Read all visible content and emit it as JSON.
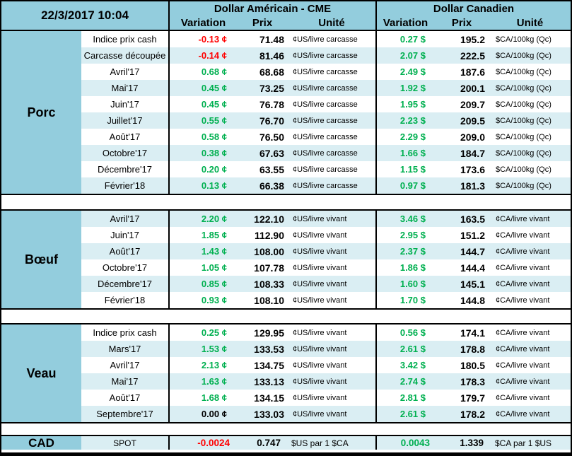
{
  "colors": {
    "header_blue": "#93CDDD",
    "stripe_blue": "#DAEEF3",
    "positive_green": "#00B050",
    "negative_red": "#FF0000",
    "border_black": "#000000"
  },
  "header": {
    "date": "22/3/2017 10:04",
    "us_title": "Dollar Américain - CME",
    "ca_title": "Dollar Canadien",
    "columns": {
      "variation": "Variation",
      "prix": "Prix",
      "unite": "Unité"
    }
  },
  "sections": [
    {
      "name": "Porc",
      "stripe_offset": 1,
      "rows": [
        {
          "label": "Indice prix cash",
          "us": {
            "var": "-0.13 ¢",
            "var_color": "red",
            "prix": "71.48",
            "unit": "¢US/livre carcasse"
          },
          "ca": {
            "var": "0.27 $",
            "var_color": "green",
            "prix": "195.2",
            "unit": "$CA/100kg (Qc)"
          }
        },
        {
          "label": "Carcasse découpée",
          "us": {
            "var": "-0.14 ¢",
            "var_color": "red",
            "prix": "81.46",
            "unit": "¢US/livre carcasse"
          },
          "ca": {
            "var": "2.07 $",
            "var_color": "green",
            "prix": "222.5",
            "unit": "$CA/100kg (Qc)"
          }
        },
        {
          "label": "Avril'17",
          "us": {
            "var": "0.68 ¢",
            "var_color": "green",
            "prix": "68.68",
            "unit": "¢US/livre carcasse"
          },
          "ca": {
            "var": "2.49 $",
            "var_color": "green",
            "prix": "187.6",
            "unit": "$CA/100kg (Qc)"
          }
        },
        {
          "label": "Mai'17",
          "us": {
            "var": "0.45 ¢",
            "var_color": "green",
            "prix": "73.25",
            "unit": "¢US/livre carcasse"
          },
          "ca": {
            "var": "1.92 $",
            "var_color": "green",
            "prix": "200.1",
            "unit": "$CA/100kg (Qc)"
          }
        },
        {
          "label": "Juin'17",
          "us": {
            "var": "0.45 ¢",
            "var_color": "green",
            "prix": "76.78",
            "unit": "¢US/livre carcasse"
          },
          "ca": {
            "var": "1.95 $",
            "var_color": "green",
            "prix": "209.7",
            "unit": "$CA/100kg (Qc)"
          }
        },
        {
          "label": "Juillet'17",
          "us": {
            "var": "0.55 ¢",
            "var_color": "green",
            "prix": "76.70",
            "unit": "¢US/livre carcasse"
          },
          "ca": {
            "var": "2.23 $",
            "var_color": "green",
            "prix": "209.5",
            "unit": "$CA/100kg (Qc)"
          }
        },
        {
          "label": "Août'17",
          "us": {
            "var": "0.58 ¢",
            "var_color": "green",
            "prix": "76.50",
            "unit": "¢US/livre carcasse"
          },
          "ca": {
            "var": "2.29 $",
            "var_color": "green",
            "prix": "209.0",
            "unit": "$CA/100kg (Qc)"
          }
        },
        {
          "label": "Octobre'17",
          "us": {
            "var": "0.38 ¢",
            "var_color": "green",
            "prix": "67.63",
            "unit": "¢US/livre carcasse"
          },
          "ca": {
            "var": "1.66 $",
            "var_color": "green",
            "prix": "184.7",
            "unit": "$CA/100kg (Qc)"
          }
        },
        {
          "label": "Décembre'17",
          "us": {
            "var": "0.20 ¢",
            "var_color": "green",
            "prix": "63.55",
            "unit": "¢US/livre carcasse"
          },
          "ca": {
            "var": "1.15 $",
            "var_color": "green",
            "prix": "173.6",
            "unit": "$CA/100kg (Qc)"
          }
        },
        {
          "label": "Février'18",
          "us": {
            "var": "0.13 ¢",
            "var_color": "green",
            "prix": "66.38",
            "unit": "¢US/livre carcasse"
          },
          "ca": {
            "var": "0.97 $",
            "var_color": "green",
            "prix": "181.3",
            "unit": "$CA/100kg (Qc)"
          }
        }
      ]
    },
    {
      "name": "Bœuf",
      "stripe_offset": 0,
      "rows": [
        {
          "label": "Avril'17",
          "us": {
            "var": "2.20 ¢",
            "var_color": "green",
            "prix": "122.10",
            "unit": "¢US/livre vivant"
          },
          "ca": {
            "var": "3.46 $",
            "var_color": "green",
            "prix": "163.5",
            "unit": "¢CA/livre vivant"
          }
        },
        {
          "label": "Juin'17",
          "us": {
            "var": "1.85 ¢",
            "var_color": "green",
            "prix": "112.90",
            "unit": "¢US/livre vivant"
          },
          "ca": {
            "var": "2.95 $",
            "var_color": "green",
            "prix": "151.2",
            "unit": "¢CA/livre vivant"
          }
        },
        {
          "label": "Août'17",
          "us": {
            "var": "1.43 ¢",
            "var_color": "green",
            "prix": "108.00",
            "unit": "¢US/livre vivant"
          },
          "ca": {
            "var": "2.37 $",
            "var_color": "green",
            "prix": "144.7",
            "unit": "¢CA/livre vivant"
          }
        },
        {
          "label": "Octobre'17",
          "us": {
            "var": "1.05 ¢",
            "var_color": "green",
            "prix": "107.78",
            "unit": "¢US/livre vivant"
          },
          "ca": {
            "var": "1.86 $",
            "var_color": "green",
            "prix": "144.4",
            "unit": "¢CA/livre vivant"
          }
        },
        {
          "label": "Décembre'17",
          "us": {
            "var": "0.85 ¢",
            "var_color": "green",
            "prix": "108.33",
            "unit": "¢US/livre vivant"
          },
          "ca": {
            "var": "1.60 $",
            "var_color": "green",
            "prix": "145.1",
            "unit": "¢CA/livre vivant"
          }
        },
        {
          "label": "Février'18",
          "us": {
            "var": "0.93 ¢",
            "var_color": "green",
            "prix": "108.10",
            "unit": "¢US/livre vivant"
          },
          "ca": {
            "var": "1.70 $",
            "var_color": "green",
            "prix": "144.8",
            "unit": "¢CA/livre vivant"
          }
        }
      ]
    },
    {
      "name": "Veau",
      "stripe_offset": 1,
      "rows": [
        {
          "label": "Indice prix cash",
          "us": {
            "var": "0.25 ¢",
            "var_color": "green",
            "prix": "129.95",
            "unit": "¢US/livre vivant"
          },
          "ca": {
            "var": "0.56 $",
            "var_color": "green",
            "prix": "174.1",
            "unit": "¢CA/livre vivant"
          }
        },
        {
          "label": "Mars'17",
          "us": {
            "var": "1.53 ¢",
            "var_color": "green",
            "prix": "133.53",
            "unit": "¢US/livre vivant"
          },
          "ca": {
            "var": "2.61 $",
            "var_color": "green",
            "prix": "178.8",
            "unit": "¢CA/livre vivant"
          }
        },
        {
          "label": "Avril'17",
          "us": {
            "var": "2.13 ¢",
            "var_color": "green",
            "prix": "134.75",
            "unit": "¢US/livre vivant"
          },
          "ca": {
            "var": "3.42 $",
            "var_color": "green",
            "prix": "180.5",
            "unit": "¢CA/livre vivant"
          }
        },
        {
          "label": "Mai'17",
          "us": {
            "var": "1.63 ¢",
            "var_color": "green",
            "prix": "133.13",
            "unit": "¢US/livre vivant"
          },
          "ca": {
            "var": "2.74 $",
            "var_color": "green",
            "prix": "178.3",
            "unit": "¢CA/livre vivant"
          }
        },
        {
          "label": "Août'17",
          "us": {
            "var": "1.68 ¢",
            "var_color": "green",
            "prix": "134.15",
            "unit": "¢US/livre vivant"
          },
          "ca": {
            "var": "2.81 $",
            "var_color": "green",
            "prix": "179.7",
            "unit": "¢CA/livre vivant"
          }
        },
        {
          "label": "Septembre'17",
          "us": {
            "var": "0.00 ¢",
            "var_color": "black",
            "prix": "133.03",
            "unit": "¢US/livre vivant"
          },
          "ca": {
            "var": "2.61 $",
            "var_color": "green",
            "prix": "178.2",
            "unit": "¢CA/livre vivant"
          }
        }
      ]
    }
  ],
  "footer": {
    "name": "CAD",
    "label": "SPOT",
    "us": {
      "var": "-0.0024",
      "var_color": "red",
      "prix": "0.747",
      "unit": "$US par 1 $CA"
    },
    "ca": {
      "var": "0.0043",
      "var_color": "green",
      "prix": "1.339",
      "unit": "$CA par 1 $US"
    }
  }
}
